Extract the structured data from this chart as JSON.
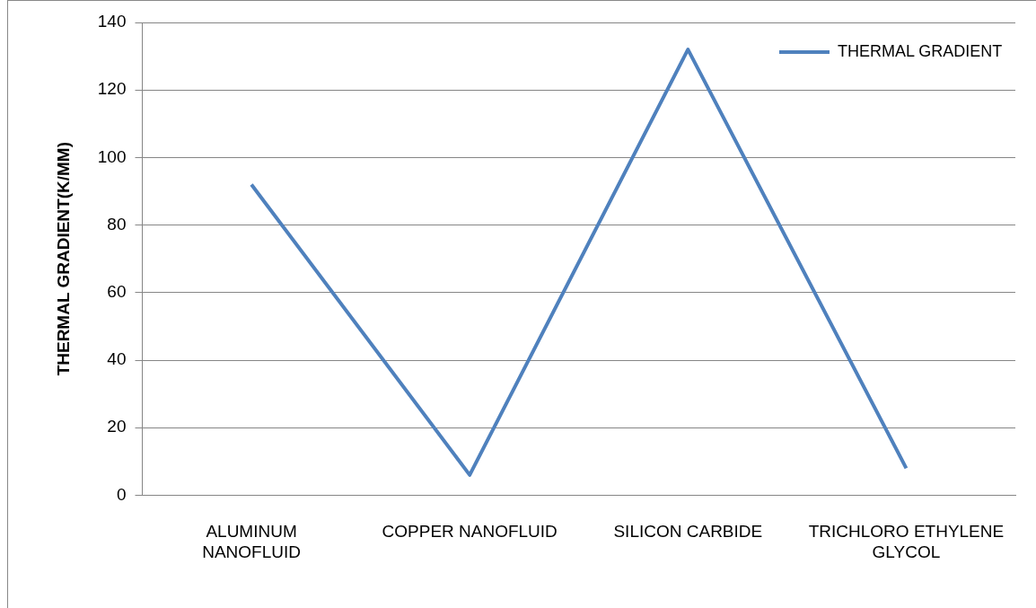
{
  "chart_data": {
    "type": "line",
    "ylabel": "THERMAL GRADIENT(K/MM)",
    "categories": [
      "ALUMINUM\nNANOFLUID",
      "COPPER NANOFLUID",
      "SILICON CARBIDE",
      "TRICHLORO ETHYLENE\nGLYCOL"
    ],
    "series": [
      {
        "name": "THERMAL GRADIENT",
        "color": "#4f81bd",
        "values": [
          92,
          6,
          132,
          8
        ]
      }
    ],
    "ylim": [
      0,
      140
    ],
    "yticks": [
      0,
      20,
      40,
      60,
      80,
      100,
      120,
      140
    ],
    "grid": "y",
    "legend": "top right",
    "marker": "none",
    "line_style": "solid"
  }
}
